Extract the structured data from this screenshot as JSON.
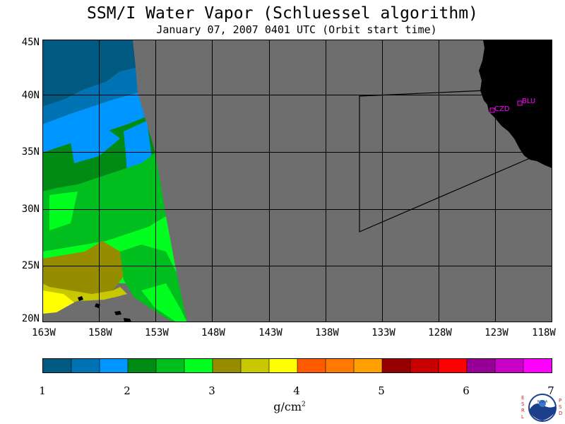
{
  "title": "SSM/I Water Vapor (Schluessel algorithm)",
  "subtitle": "January 07, 2007  0401 UTC  (Orbit start time)",
  "lat_labels": [
    "45N",
    "40N",
    "35N",
    "30N",
    "25N",
    "20N"
  ],
  "lon_labels": [
    "163W",
    "158W",
    "153W",
    "148W",
    "143W",
    "138W",
    "133W",
    "128W",
    "123W",
    "118W"
  ],
  "stations": [
    {
      "code": "CZD"
    },
    {
      "code": "BLU"
    }
  ],
  "colorbar": {
    "ticks": [
      "1",
      "2",
      "3",
      "4",
      "5",
      "6",
      "7"
    ],
    "unit_base": "g/cm",
    "unit_exp": "2",
    "colors": [
      "#005a82",
      "#0073b4",
      "#0096ff",
      "#008c14",
      "#00be1e",
      "#00ff1e",
      "#968c00",
      "#c8c800",
      "#ffff00",
      "#ff5a00",
      "#ff7800",
      "#ffa000",
      "#960000",
      "#c80000",
      "#ff0000",
      "#960096",
      "#c800c8",
      "#ff00ff"
    ]
  },
  "colors": {
    "no_data": "#6e6e6e",
    "land": "#000000",
    "station": "#ff00ff"
  },
  "logo_text": {
    "left": "ESRL",
    "right": "PSD",
    "center": "NOAA"
  }
}
